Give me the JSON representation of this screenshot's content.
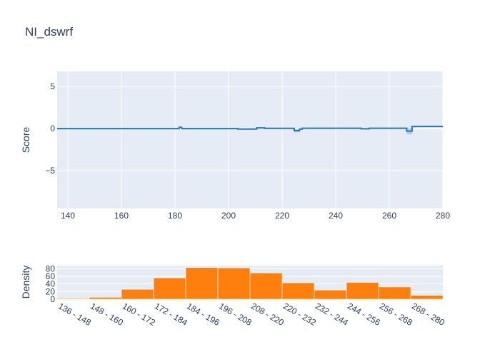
{
  "chart_data": [
    {
      "type": "line",
      "title": "NI_dswrf",
      "xlabel": "",
      "ylabel": "Score",
      "xlim": [
        136,
        280
      ],
      "ylim": [
        -9.5,
        6.8
      ],
      "x_ticks": [
        140,
        160,
        180,
        200,
        220,
        240,
        260,
        280
      ],
      "y_ticks": [
        5,
        0,
        -5
      ],
      "y_tick_labels": [
        "5",
        "0",
        "−5"
      ],
      "grid": true,
      "line_color": "#1f77b4",
      "band_color": "#1f77b4",
      "series": [
        {
          "x": [
            136,
            181.5,
            181.5,
            182.5,
            182.5,
            203.5,
            203.5,
            210.5,
            210.5,
            213.5,
            213.5,
            224.5,
            224.5,
            226.5,
            226.5,
            227.5,
            227.5,
            249.5,
            249.5,
            252.5,
            252.5,
            266.5,
            266.5,
            268.5,
            268.5,
            280
          ],
          "y": [
            0,
            0,
            0.15,
            0.15,
            0,
            0,
            -0.05,
            -0.05,
            0.08,
            0.08,
            0.03,
            0.03,
            -0.25,
            -0.25,
            -0.05,
            -0.05,
            0.04,
            0.04,
            -0.02,
            -0.02,
            0.04,
            0.04,
            -0.3,
            -0.3,
            0.25,
            0.25
          ],
          "band_low": [
            0,
            0,
            0.05,
            0.05,
            0,
            0,
            -0.1,
            -0.1,
            0.03,
            0.03,
            -0.02,
            -0.02,
            -0.45,
            -0.45,
            -0.1,
            -0.1,
            0,
            0,
            -0.06,
            -0.06,
            0,
            0,
            -0.7,
            -0.7,
            0.18,
            0.18
          ],
          "band_high": [
            0,
            0,
            0.25,
            0.25,
            0,
            0,
            0,
            0,
            0.13,
            0.13,
            0.08,
            0.08,
            -0.05,
            -0.05,
            0,
            0,
            0.08,
            0.08,
            0.02,
            0.02,
            0.08,
            0.08,
            0.1,
            0.1,
            0.32,
            0.32
          ]
        }
      ]
    },
    {
      "type": "bar",
      "xlabel": "",
      "ylabel": "Density",
      "ylim": [
        0,
        88
      ],
      "y_ticks": [
        0,
        20,
        40,
        60,
        80
      ],
      "bar_color": "#ff7f0e",
      "grid": true,
      "categories": [
        "136 - 148",
        "148 - 160",
        "160 - 172",
        "172 - 184",
        "184 - 196",
        "196 - 208",
        "208 - 220",
        "220 - 232",
        "232 - 244",
        "244 - 256",
        "256 - 268",
        "268 - 280"
      ],
      "values": [
        2,
        5,
        26,
        56,
        83,
        82,
        69,
        43,
        24,
        44,
        32,
        10
      ]
    }
  ]
}
